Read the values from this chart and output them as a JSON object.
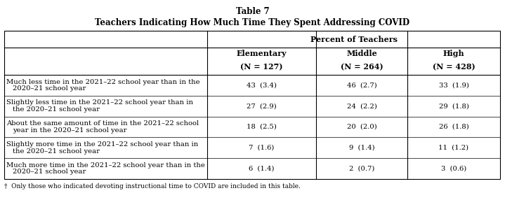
{
  "title_line1": "Table 7",
  "title_line2": "Teachers Indicating How Much Time They Spent Addressing COVID",
  "header_group": "Percent of Teachers",
  "columns": [
    {
      "name": "Elementary",
      "sub": "(N = 127)"
    },
    {
      "name": "Middle",
      "sub": "(N = 264)"
    },
    {
      "name": "High",
      "sub": "(N = 428)"
    }
  ],
  "rows": [
    {
      "label_lines": [
        "Much less time in the 2021–22 school year than in the",
        "2020–21 school year"
      ],
      "values": [
        "43  (3.4)",
        "46  (2.7)",
        "33  (1.9)"
      ]
    },
    {
      "label_lines": [
        "Slightly less time in the 2021–22 school year than in",
        "the 2020–21 school year"
      ],
      "values": [
        "27  (2.9)",
        "24  (2.2)",
        "29  (1.8)"
      ]
    },
    {
      "label_lines": [
        "About the same amount of time in the 2021–22 school",
        "year in the 2020–21 school year"
      ],
      "values": [
        "18  (2.5)",
        "20  (2.0)",
        "26  (1.8)"
      ]
    },
    {
      "label_lines": [
        "Slightly more time in the 2021–22 school year than in",
        "the 2020–21 school year"
      ],
      "values": [
        "7  (1.6)",
        "9  (1.4)",
        "11  (1.2)"
      ]
    },
    {
      "label_lines": [
        "Much more time in the 2021–22 school year than in the",
        "2020–21 school year"
      ],
      "values": [
        "6  (1.4)",
        "2  (0.7)",
        "3  (0.6)"
      ]
    }
  ],
  "footnote": "†  Only those who indicated devoting instructional time to COVID are included in this table.",
  "bg_color": "#ffffff",
  "text_color": "#000000",
  "font_size": 7.2,
  "title_font_size": 8.5,
  "header_font_size": 8.0
}
